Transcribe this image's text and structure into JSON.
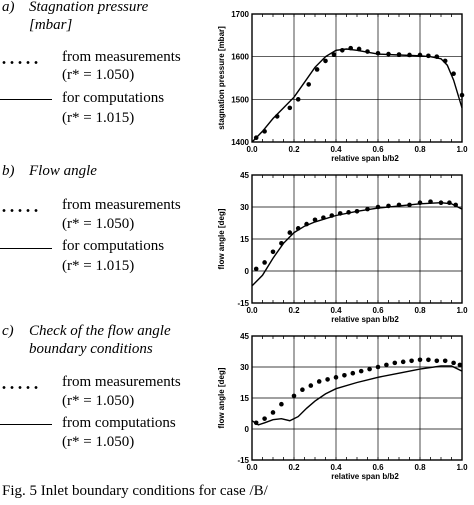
{
  "panels": [
    {
      "label": "a)",
      "title_lines": [
        "Stagnation pressure",
        "[mbar]"
      ],
      "legend": [
        {
          "style": "dots",
          "lines": [
            "from measurements",
            "(r* = 1.050)"
          ]
        },
        {
          "style": "solid",
          "lines": [
            "for computations",
            "(r* = 1.015)"
          ]
        }
      ]
    },
    {
      "label": "b)",
      "title_lines": [
        "Flow angle"
      ],
      "legend": [
        {
          "style": "dots",
          "lines": [
            "from measurements",
            "(r* = 1.050)"
          ]
        },
        {
          "style": "solid",
          "lines": [
            "for computations",
            "(r* = 1.015)"
          ]
        }
      ]
    },
    {
      "label": "c)",
      "title_lines": [
        "Check of the flow angle",
        "boundary conditions"
      ],
      "legend": [
        {
          "style": "dots",
          "lines": [
            "from measurements",
            "(r* = 1.050)"
          ]
        },
        {
          "style": "solid",
          "lines": [
            "from computations",
            "(r* = 1.050)"
          ]
        }
      ]
    }
  ],
  "caption": "Fig. 5  Inlet boundary conditions for case /B/",
  "chart_data": [
    {
      "type": "line",
      "xlabel": "relative span  b/b2",
      "ylabel": "stagnation pressure [mbar]",
      "xlim": [
        0,
        1
      ],
      "ylim": [
        1400,
        1700
      ],
      "xticks": [
        0.0,
        0.2,
        0.4,
        0.6,
        0.8,
        1.0
      ],
      "xtick_labels": [
        "0.0",
        "0.2",
        "0.4",
        "0.6",
        "0.8",
        "1.0"
      ],
      "yticks": [
        1400,
        1500,
        1600,
        1700
      ],
      "ytick_labels": [
        "1400",
        "1500",
        "1600",
        "1700"
      ],
      "grid": true,
      "series": [
        {
          "style": "points",
          "x": [
            0.02,
            0.06,
            0.12,
            0.18,
            0.22,
            0.27,
            0.31,
            0.35,
            0.39,
            0.43,
            0.47,
            0.51,
            0.55,
            0.6,
            0.65,
            0.7,
            0.75,
            0.8,
            0.84,
            0.88,
            0.92,
            0.96,
            1.0
          ],
          "y": [
            1410,
            1425,
            1460,
            1480,
            1500,
            1535,
            1570,
            1590,
            1605,
            1615,
            1620,
            1618,
            1612,
            1608,
            1606,
            1605,
            1604,
            1604,
            1602,
            1600,
            1590,
            1560,
            1510
          ]
        },
        {
          "style": "line",
          "x": [
            0.0,
            0.05,
            0.1,
            0.15,
            0.2,
            0.25,
            0.3,
            0.35,
            0.4,
            0.45,
            0.5,
            0.6,
            0.7,
            0.8,
            0.85,
            0.9,
            0.93,
            0.96,
            1.0
          ],
          "y": [
            1400,
            1425,
            1455,
            1480,
            1505,
            1540,
            1575,
            1600,
            1615,
            1618,
            1615,
            1606,
            1604,
            1602,
            1600,
            1595,
            1580,
            1545,
            1480
          ]
        }
      ]
    },
    {
      "type": "line",
      "xlabel": "relative span  b/b2",
      "ylabel": "flow angle [deg]",
      "xlim": [
        0,
        1
      ],
      "ylim": [
        -15,
        45
      ],
      "xticks": [
        0.0,
        0.2,
        0.4,
        0.6,
        0.8,
        1.0
      ],
      "xtick_labels": [
        "0.0",
        "0.2",
        "0.4",
        "0.6",
        "0.8",
        "1.0"
      ],
      "yticks": [
        -15,
        0,
        15,
        30,
        45
      ],
      "ytick_labels": [
        "-15",
        "0",
        "15",
        "30",
        "45"
      ],
      "grid": true,
      "series": [
        {
          "style": "points",
          "x": [
            0.02,
            0.06,
            0.1,
            0.14,
            0.18,
            0.22,
            0.26,
            0.3,
            0.34,
            0.38,
            0.42,
            0.46,
            0.5,
            0.55,
            0.6,
            0.65,
            0.7,
            0.75,
            0.8,
            0.85,
            0.9,
            0.94,
            0.97
          ],
          "y": [
            1,
            4,
            9,
            13,
            18,
            20,
            22,
            24,
            25,
            26,
            27,
            27.5,
            28,
            29,
            30,
            30.5,
            31,
            31,
            32,
            32.5,
            32,
            32,
            31
          ]
        },
        {
          "style": "line",
          "x": [
            0.0,
            0.05,
            0.1,
            0.15,
            0.2,
            0.25,
            0.3,
            0.4,
            0.5,
            0.6,
            0.7,
            0.8,
            0.9,
            0.95,
            1.0
          ],
          "y": [
            -7,
            -2,
            6,
            13,
            18,
            21,
            23,
            26,
            28,
            29.5,
            30.5,
            31.5,
            32,
            31.5,
            29
          ]
        }
      ]
    },
    {
      "type": "line",
      "xlabel": "relative span  b/b2",
      "ylabel": "flow angle [deg]",
      "xlim": [
        0,
        1
      ],
      "ylim": [
        -15,
        45
      ],
      "xticks": [
        0.0,
        0.2,
        0.4,
        0.6,
        0.8,
        1.0
      ],
      "xtick_labels": [
        "0.0",
        "0.2",
        "0.4",
        "0.6",
        "0.8",
        "1.0"
      ],
      "yticks": [
        -15,
        0,
        15,
        30,
        45
      ],
      "ytick_labels": [
        "-15",
        "0",
        "15",
        "30",
        "45"
      ],
      "grid": true,
      "series": [
        {
          "style": "points",
          "x": [
            0.02,
            0.06,
            0.1,
            0.14,
            0.2,
            0.24,
            0.28,
            0.32,
            0.36,
            0.4,
            0.44,
            0.48,
            0.52,
            0.56,
            0.6,
            0.64,
            0.68,
            0.72,
            0.76,
            0.8,
            0.84,
            0.88,
            0.92,
            0.96,
            0.99
          ],
          "y": [
            3,
            5,
            8,
            12,
            16,
            19,
            21,
            23,
            24,
            25,
            26,
            27,
            28,
            29,
            30,
            31,
            32,
            32.5,
            33,
            33.5,
            33.5,
            33,
            33,
            32,
            31
          ]
        },
        {
          "style": "line",
          "x": [
            0.0,
            0.03,
            0.06,
            0.1,
            0.14,
            0.18,
            0.22,
            0.26,
            0.3,
            0.35,
            0.4,
            0.5,
            0.6,
            0.7,
            0.8,
            0.9,
            0.95,
            1.0
          ],
          "y": [
            4,
            2,
            3,
            4.5,
            5,
            4,
            6,
            10,
            13.5,
            17,
            19.5,
            22.5,
            25,
            27,
            29,
            30.5,
            30.5,
            28
          ]
        }
      ]
    }
  ]
}
